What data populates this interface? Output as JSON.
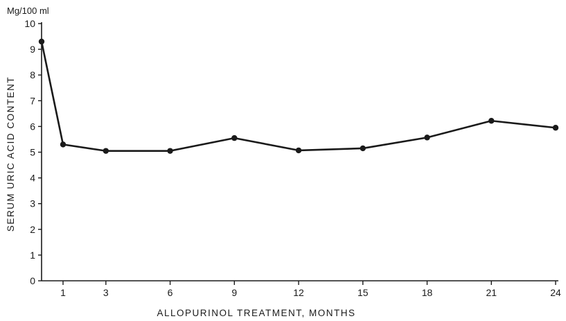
{
  "chart_data": {
    "type": "line",
    "unit_label": "Mg/100 ml",
    "ylabel": "SERUM URIC ACID CONTENT",
    "xlabel": "ALLOPURINOL TREATMENT, MONTHS",
    "ylim": [
      0,
      10
    ],
    "yticks": [
      0,
      1,
      2,
      3,
      4,
      5,
      6,
      7,
      8,
      9,
      10
    ],
    "xticks": [
      1,
      3,
      6,
      9,
      12,
      15,
      18,
      21,
      24
    ],
    "grid": false,
    "series": [
      {
        "x": [
          0,
          1,
          3,
          6,
          9,
          12,
          15,
          18,
          21,
          24
        ],
        "y": [
          9.3,
          5.3,
          5.05,
          5.05,
          5.55,
          5.07,
          5.15,
          5.57,
          6.22,
          5.95
        ]
      }
    ]
  },
  "colors": {
    "ink": "#1a1a1a",
    "background": "#ffffff"
  }
}
